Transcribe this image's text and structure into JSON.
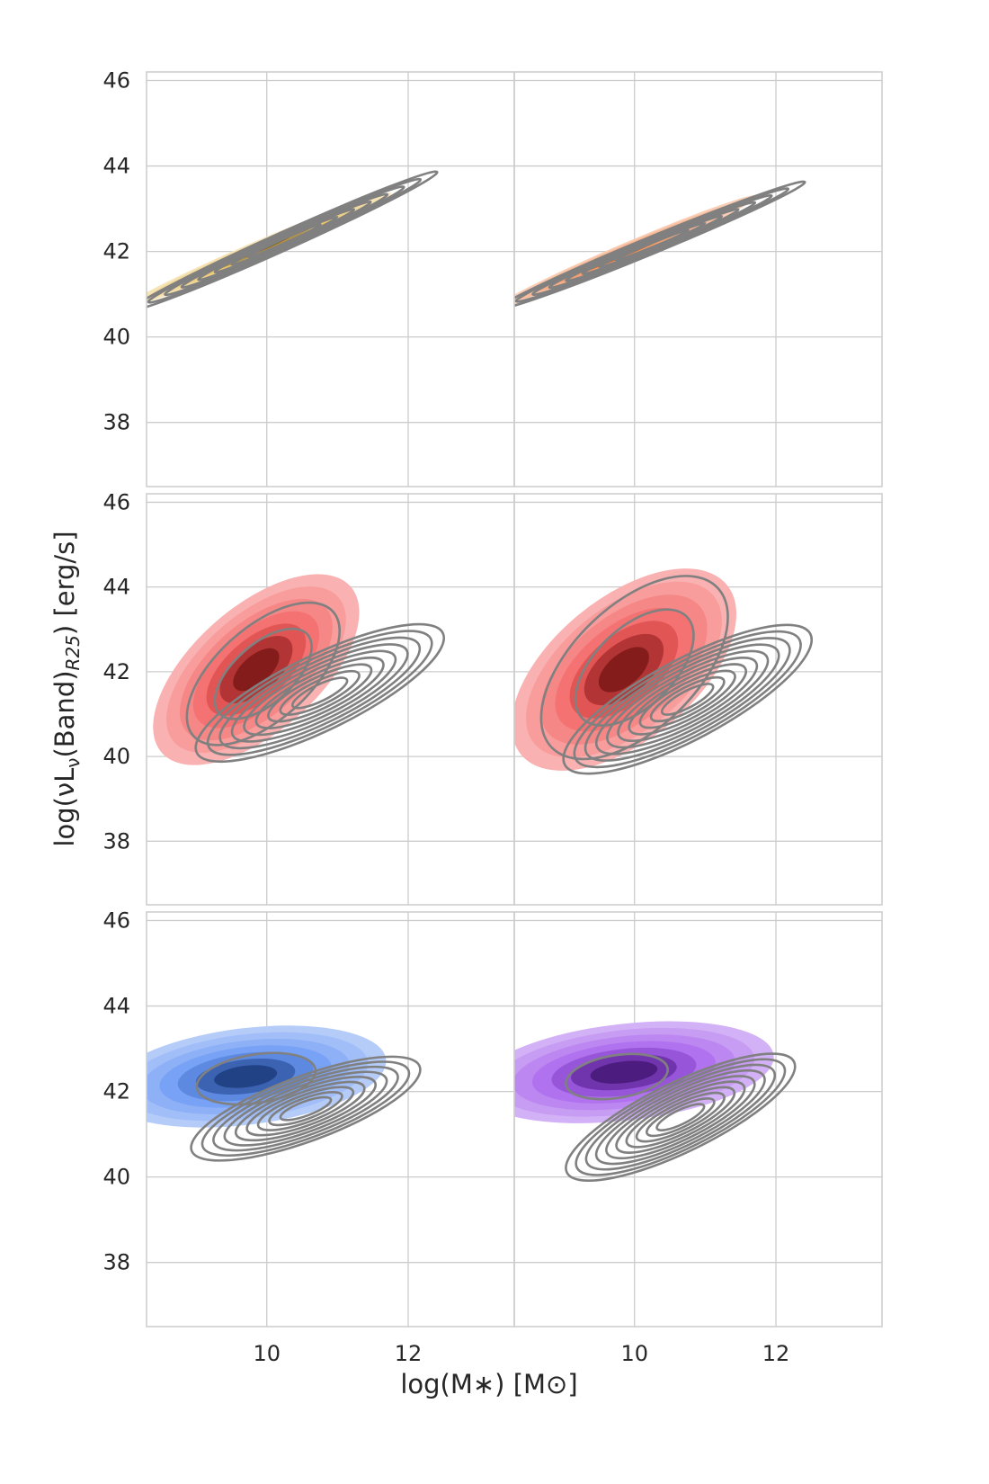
{
  "chart_data": {
    "type": "contour",
    "layout": "3x2 grid of panels with shared axes",
    "xlabel": "log(M∗) [M⊙]",
    "ylabel_parts": [
      "log(νL",
      "ν",
      "(Band)",
      "R25",
      ") [erg/s]"
    ],
    "xlim": [
      8.3,
      13.5
    ],
    "ylim": [
      36.5,
      46.2
    ],
    "x_ticks": [
      10,
      12
    ],
    "y_ticks": [
      38,
      40,
      42,
      44,
      46
    ],
    "grid": true,
    "contour_color": "#808080",
    "panels": [
      {
        "row": 0,
        "col": 0,
        "fill_color": "#e6b440",
        "filled": {
          "center": [
            9.9,
            42.05
          ],
          "spread": [
            0.7,
            0.5
          ],
          "rho": 0.985,
          "levels": 6
        },
        "lines": {
          "center": [
            10.25,
            42.25
          ],
          "spread": [
            0.8,
            0.6
          ],
          "rho": 0.99,
          "levels": 8
        }
      },
      {
        "row": 0,
        "col": 1,
        "fill_color": "#f07d3c",
        "filled": {
          "center": [
            9.9,
            42.0
          ],
          "spread": [
            0.7,
            0.5
          ],
          "rho": 0.985,
          "levels": 6
        },
        "lines": {
          "center": [
            10.25,
            42.15
          ],
          "spread": [
            0.8,
            0.55
          ],
          "rho": 0.99,
          "levels": 8
        }
      },
      {
        "row": 1,
        "col": 0,
        "fill_color": "#f03232",
        "filled": {
          "center": [
            9.85,
            42.05
          ],
          "spread": [
            0.55,
            0.85
          ],
          "rho": 0.6,
          "levels": 7
        },
        "lines": {
          "center": [
            10.75,
            41.5
          ],
          "spread": [
            0.65,
            0.6
          ],
          "rho": 0.8,
          "levels": 9
        },
        "lines2": {
          "center": [
            9.95,
            41.95
          ],
          "spread": [
            0.45,
            0.7
          ],
          "rho": 0.6,
          "levels": 2
        }
      },
      {
        "row": 1,
        "col": 1,
        "fill_color": "#f03232",
        "filled": {
          "center": [
            9.85,
            42.05
          ],
          "spread": [
            0.6,
            0.9
          ],
          "rho": 0.55,
          "levels": 7
        },
        "lines": {
          "center": [
            10.75,
            41.35
          ],
          "spread": [
            0.65,
            0.65
          ],
          "rho": 0.8,
          "levels": 10
        },
        "lines2": {
          "center": [
            10.0,
            42.1
          ],
          "spread": [
            0.55,
            0.9
          ],
          "rho": 0.55,
          "levels": 2
        }
      },
      {
        "row": 2,
        "col": 0,
        "fill_color": "#3c78f0",
        "filled": {
          "center": [
            9.7,
            42.35
          ],
          "spread": [
            0.75,
            0.45
          ],
          "rho": 0.3,
          "levels": 7
        },
        "lines": {
          "center": [
            10.55,
            41.6
          ],
          "spread": [
            0.6,
            0.45
          ],
          "rho": 0.75,
          "levels": 9
        },
        "lines2": {
          "center": [
            9.85,
            42.3
          ],
          "spread": [
            0.35,
            0.25
          ],
          "rho": 0.3,
          "levels": 1
        }
      },
      {
        "row": 2,
        "col": 1,
        "fill_color": "#8c32e6",
        "filled": {
          "center": [
            9.85,
            42.45
          ],
          "spread": [
            0.8,
            0.45
          ],
          "rho": 0.3,
          "levels": 7
        },
        "lines": {
          "center": [
            10.65,
            41.4
          ],
          "spread": [
            0.6,
            0.55
          ],
          "rho": 0.8,
          "levels": 10
        },
        "lines2": {
          "center": [
            9.75,
            42.35
          ],
          "spread": [
            0.3,
            0.22
          ],
          "rho": 0.3,
          "levels": 1
        }
      }
    ]
  }
}
